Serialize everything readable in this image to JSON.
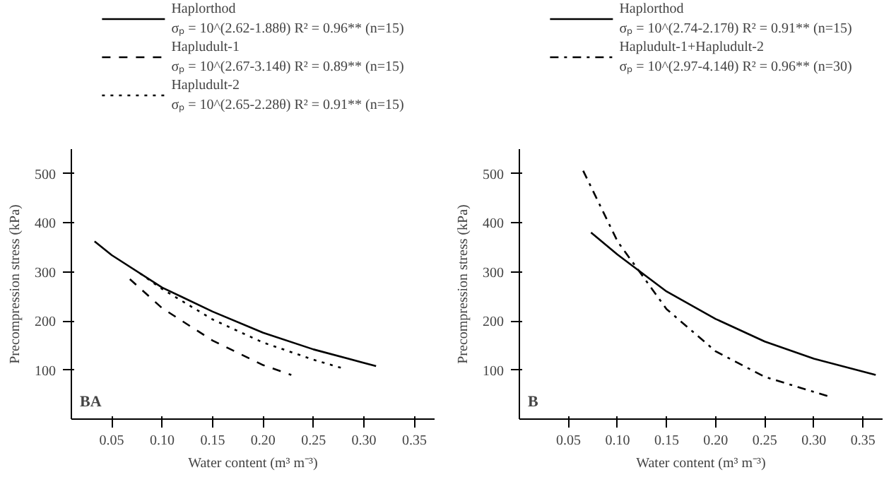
{
  "chart_data": [
    {
      "type": "line",
      "xlabel": "Water content (m³ m⁻³)",
      "ylabel": "Precompression stress (kPa)",
      "annotations": [
        "BA"
      ],
      "xlim": [
        0.01,
        0.37
      ],
      "ylim": [
        0,
        550
      ],
      "xticks": [
        0.05,
        {
          "value": 0.1,
          "label": "0.10"
        },
        0.15,
        {
          "value": 0.2,
          "label": "0.20"
        },
        0.25,
        {
          "value": 0.3,
          "label": "0.30"
        },
        0.35
      ],
      "yticks": [
        100,
        200,
        300,
        400,
        500
      ],
      "grid": false,
      "legend": "top",
      "marker": "none",
      "series": [
        {
          "name": "Haplorthod\nσₚ = 10^(2.62-1.88θ) R² = 0.96** (n=15)",
          "color": "#000000",
          "line_style": "solid",
          "x": [
            0.033,
            0.05,
            0.1,
            0.15,
            0.2,
            0.25,
            0.312
          ],
          "values": [
            362,
            334,
            268,
            219,
            176,
            142,
            108
          ]
        },
        {
          "name": "Hapludult-1\nσₚ = 10^(2.67-3.14θ) R² = 0.89** (n=15)",
          "color": "#000000",
          "line_style": "dashed",
          "x": [
            0.068,
            0.1,
            0.15,
            0.2,
            0.228
          ],
          "values": [
            285,
            226,
            160,
            110,
            90
          ]
        },
        {
          "name": "Hapludult-2\nσₚ = 10^(2.65-2.28θ) R² = 0.91** (n=15)",
          "color": "#000000",
          "line_style": "dotted",
          "x": [
            0.078,
            0.1,
            0.15,
            0.2,
            0.25,
            0.278
          ],
          "values": [
            297,
            265,
            203,
            156,
            121,
            104
          ]
        }
      ]
    },
    {
      "type": "line",
      "xlabel": "Water content (m³ m⁻³)",
      "ylabel": "Precompression stress (kPa)",
      "annotations": [
        "B"
      ],
      "xlim": [
        0.0,
        0.37
      ],
      "ylim": [
        0,
        550
      ],
      "xticks": [
        0.05,
        {
          "value": 0.1,
          "label": "0.10"
        },
        0.15,
        {
          "value": 0.2,
          "label": "0.20"
        },
        0.25,
        {
          "value": 0.3,
          "label": "0.30"
        },
        0.35
      ],
      "yticks": [
        100,
        200,
        300,
        400,
        500
      ],
      "grid": false,
      "legend": "top",
      "marker": "none",
      "series": [
        {
          "name": "Haplorthod\nσₚ = 10^(2.74-2.17θ) R² = 0.91** (n=15)",
          "color": "#000000",
          "line_style": "solid",
          "x": [
            0.073,
            0.1,
            0.15,
            0.2,
            0.25,
            0.3,
            0.363
          ],
          "values": [
            380,
            335,
            260,
            204,
            158,
            123,
            90
          ]
        },
        {
          "name": "Hapludult-1+Hapludult-2\nσₚ = 10^(2.97-4.14θ) R² = 0.96** (n=30)",
          "color": "#000000",
          "line_style": "dashdot",
          "x": [
            0.065,
            0.1,
            0.15,
            0.2,
            0.25,
            0.314
          ],
          "values": [
            506,
            362,
            224,
            138,
            86,
            47
          ]
        }
      ]
    }
  ]
}
